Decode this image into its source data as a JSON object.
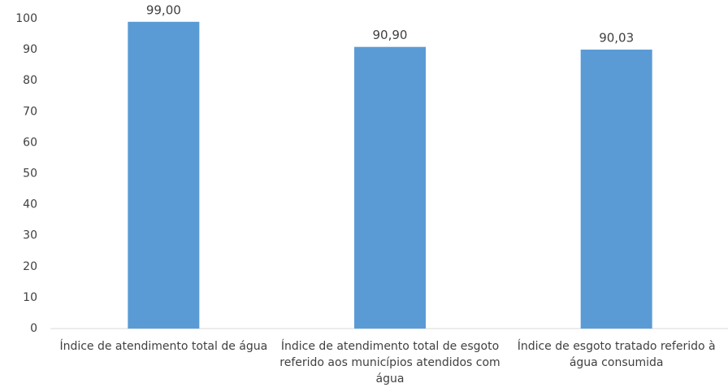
{
  "chart_data": {
    "type": "bar",
    "categories": [
      "Índice de atendimento total de água",
      "Índice de atendimento total de esgoto referido aos municípios atendidos com água",
      "Índice de esgoto tratado referido à água consumida"
    ],
    "values": [
      99,
      90.9,
      90.03
    ],
    "value_labels": [
      "99,00",
      "90,90",
      "90,03"
    ],
    "color": "#5b9bd5",
    "ylim": [
      0,
      100
    ],
    "yticks": [
      0,
      10,
      20,
      30,
      40,
      50,
      60,
      70,
      80,
      90,
      100
    ],
    "grid": false
  }
}
